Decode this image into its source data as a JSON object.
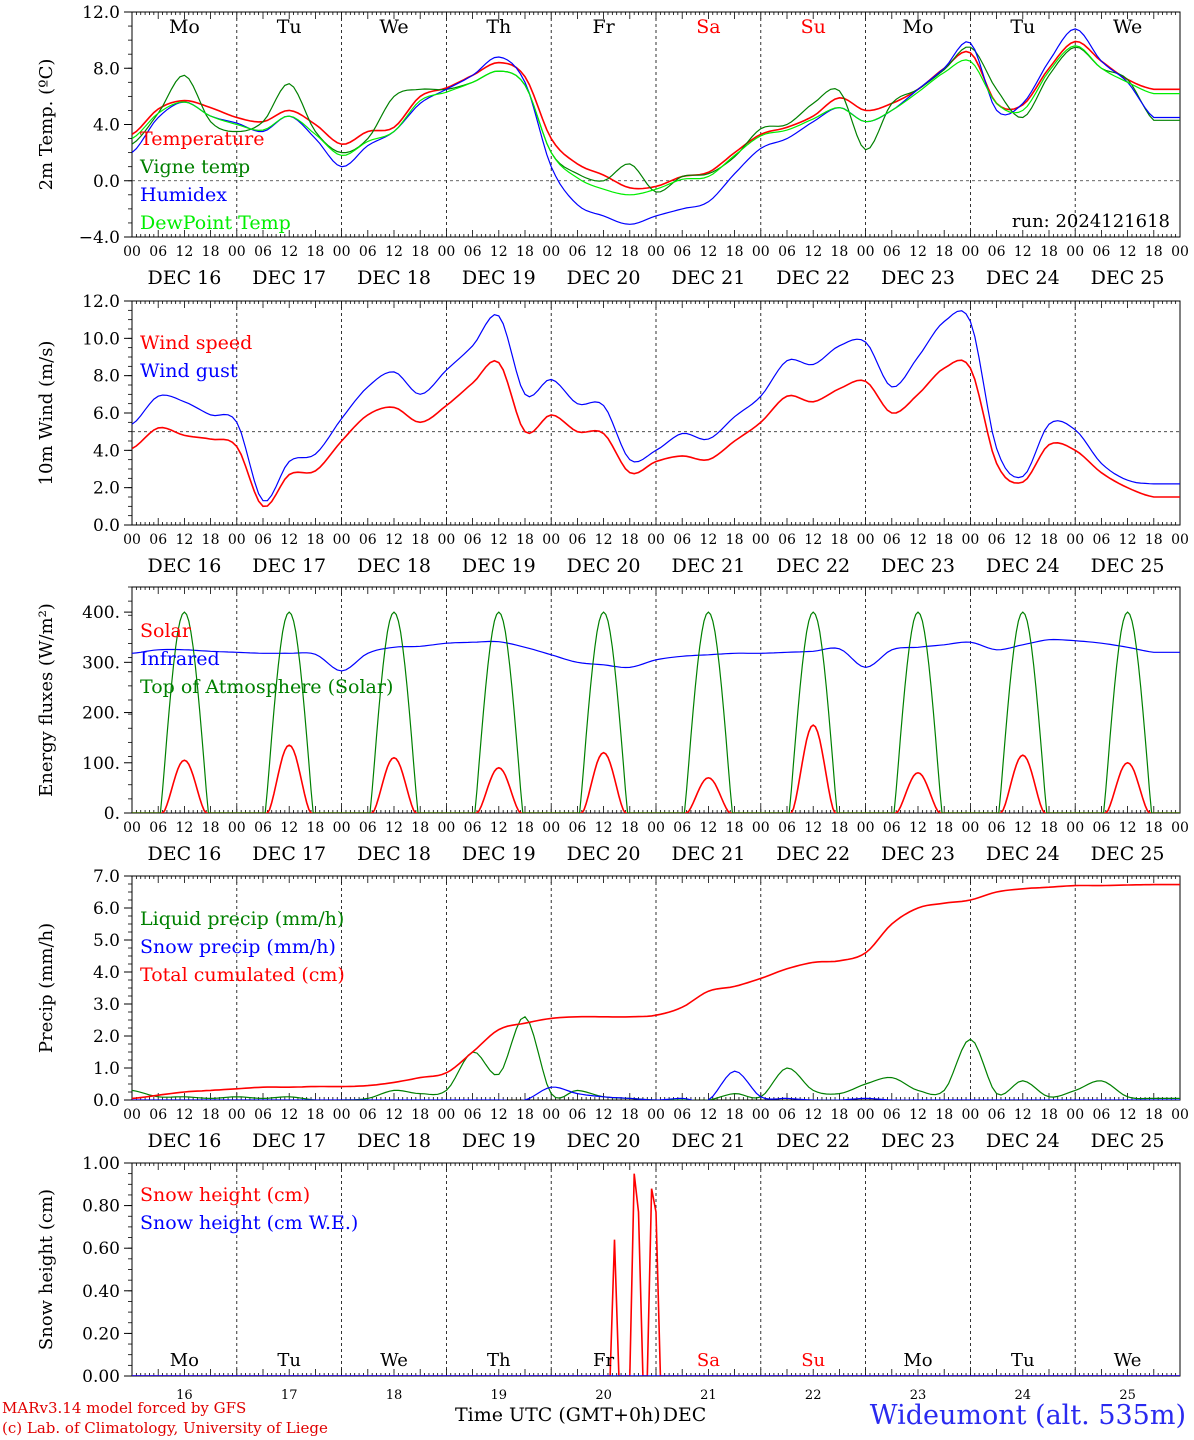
{
  "chart_data": [
    {
      "type": "line",
      "ylabel": "2m Temp. (ºC)",
      "ylim": [
        -4,
        12
      ],
      "yticks": [
        -4,
        0,
        4,
        8,
        12
      ],
      "ytick_labels": [
        "−4.0",
        "0.0",
        "4.0",
        "8.0",
        "12.0"
      ],
      "ref_line": 0,
      "weekday_labels": [
        "Mo",
        "Tu",
        "We",
        "Th",
        "Fr",
        "Sa",
        "Su",
        "Mo",
        "Tu",
        "We"
      ],
      "run_label": "run: 2024121618",
      "x_hours": [
        0,
        6,
        12,
        18,
        24,
        30,
        36,
        42,
        48,
        54,
        60,
        66,
        72,
        78,
        84,
        90,
        96,
        102,
        108,
        114,
        120,
        126,
        132,
        138,
        144,
        150,
        156,
        162,
        168,
        174,
        180,
        186,
        192,
        198,
        204,
        210,
        216,
        222,
        228,
        234
      ],
      "series": [
        {
          "name": "Temperature",
          "color": "#ff0000",
          "values": [
            3.3,
            5.1,
            5.7,
            5.2,
            4.5,
            4.2,
            5.0,
            4.0,
            2.6,
            3.5,
            3.8,
            6.0,
            6.6,
            7.5,
            8.4,
            7.4,
            3.0,
            1.2,
            0.4,
            -0.5,
            -0.4,
            0.3,
            0.6,
            2.0,
            3.3,
            3.8,
            4.6,
            5.9,
            5.0,
            5.5,
            6.5,
            8.0,
            9.1,
            5.5,
            5.4,
            8.0,
            9.9,
            8.5,
            7.2,
            6.5
          ]
        },
        {
          "name": "Vigne temp",
          "color": "#008000",
          "values": [
            2.6,
            4.8,
            7.5,
            4.2,
            3.5,
            4.2,
            6.9,
            3.5,
            2.0,
            3.0,
            6.0,
            6.5,
            6.5,
            7.0,
            7.8,
            6.8,
            2.0,
            0.5,
            0.0,
            1.2,
            -0.8,
            0.3,
            0.5,
            1.7,
            3.7,
            4.0,
            5.5,
            6.4,
            2.2,
            5.5,
            6.5,
            7.9,
            9.5,
            6.5,
            4.5,
            7.5,
            9.5,
            8.0,
            7.2,
            4.3
          ]
        },
        {
          "name": "Humidex",
          "color": "#0000ff",
          "values": [
            2.0,
            4.5,
            5.6,
            4.6,
            4.1,
            3.5,
            4.6,
            3.0,
            1.0,
            2.5,
            3.5,
            5.5,
            6.5,
            7.5,
            8.8,
            7.0,
            1.0,
            -1.7,
            -2.5,
            -3.1,
            -2.5,
            -2.0,
            -1.5,
            0.5,
            2.3,
            3.0,
            4.2,
            5.2,
            4.2,
            5.0,
            6.5,
            8.0,
            9.8,
            5.0,
            5.5,
            8.5,
            10.8,
            8.5,
            7.0,
            4.5
          ]
        },
        {
          "name": "DewPoint Temp",
          "color": "#00ee00",
          "values": [
            3.0,
            4.8,
            5.6,
            4.6,
            4.0,
            3.6,
            4.6,
            3.3,
            1.8,
            2.8,
            3.5,
            5.7,
            6.3,
            7.0,
            7.8,
            6.8,
            2.0,
            0.2,
            -0.6,
            -1.0,
            -0.6,
            0.1,
            0.3,
            1.8,
            3.2,
            3.6,
            4.4,
            5.2,
            4.2,
            5.0,
            6.3,
            7.7,
            8.5,
            5.5,
            5.0,
            7.8,
            9.6,
            8.0,
            7.0,
            6.2
          ]
        }
      ]
    },
    {
      "type": "line",
      "ylabel": "10m Wind (m/s)",
      "ylim": [
        0,
        12
      ],
      "yticks": [
        0,
        2,
        4,
        6,
        8,
        10,
        12
      ],
      "ytick_labels": [
        "0.0",
        "2.0",
        "4.0",
        "6.0",
        "8.0",
        "10.0",
        "12.0"
      ],
      "ref_line": 5,
      "x_hours": [
        0,
        6,
        12,
        18,
        24,
        30,
        36,
        42,
        48,
        54,
        60,
        66,
        72,
        78,
        84,
        90,
        96,
        102,
        108,
        114,
        120,
        126,
        132,
        138,
        144,
        150,
        156,
        162,
        168,
        174,
        180,
        186,
        192,
        198,
        204,
        210,
        216,
        222,
        228,
        234
      ],
      "series": [
        {
          "name": "Wind speed",
          "color": "#ff0000",
          "values": [
            4.1,
            5.2,
            4.8,
            4.6,
            4.2,
            1.0,
            2.7,
            2.9,
            4.5,
            5.9,
            6.3,
            5.5,
            6.4,
            7.6,
            8.7,
            5.0,
            5.9,
            5.0,
            4.9,
            2.8,
            3.4,
            3.7,
            3.5,
            4.5,
            5.5,
            6.9,
            6.6,
            7.3,
            7.7,
            6.0,
            7.0,
            8.4,
            8.4,
            3.3,
            2.3,
            4.3,
            4.0,
            2.8,
            2.0,
            1.5
          ]
        },
        {
          "name": "Wind gust",
          "color": "#0000ff",
          "values": [
            5.4,
            6.9,
            6.6,
            5.9,
            5.5,
            1.3,
            3.4,
            3.8,
            5.7,
            7.4,
            8.2,
            7.0,
            8.3,
            9.6,
            11.2,
            7.0,
            7.8,
            6.5,
            6.4,
            3.5,
            4.0,
            4.9,
            4.6,
            5.8,
            6.9,
            8.8,
            8.6,
            9.6,
            9.8,
            7.4,
            9.0,
            10.9,
            10.9,
            4.1,
            2.6,
            5.4,
            5.1,
            3.3,
            2.4,
            2.2
          ]
        }
      ]
    },
    {
      "type": "line",
      "ylabel": "Energy fluxes (W/m²)",
      "ylim": [
        0,
        450
      ],
      "yticks": [
        0,
        100,
        200,
        300,
        400
      ],
      "ytick_labels": [
        "0.",
        "100.",
        "200.",
        "300.",
        "400."
      ],
      "solar_peaks": [
        105,
        135,
        110,
        90,
        120,
        70,
        175,
        80,
        115,
        100
      ],
      "toa_peak": 400,
      "x_hours": [
        0,
        6,
        12,
        18,
        24,
        30,
        36,
        42,
        48,
        54,
        60,
        66,
        72,
        78,
        84,
        90,
        96,
        102,
        108,
        114,
        120,
        126,
        132,
        138,
        144,
        150,
        156,
        162,
        168,
        174,
        180,
        186,
        192,
        198,
        204,
        210,
        216,
        222,
        228,
        234
      ],
      "series": [
        {
          "name": "Solar",
          "color": "#ff0000",
          "values": []
        },
        {
          "name": "Infrared",
          "color": "#0000ff",
          "values": [
            318,
            325,
            325,
            322,
            320,
            318,
            318,
            316,
            283,
            318,
            330,
            332,
            338,
            340,
            341,
            330,
            315,
            300,
            295,
            290,
            305,
            312,
            315,
            318,
            318,
            320,
            322,
            327,
            290,
            325,
            330,
            335,
            340,
            325,
            335,
            345,
            343,
            338,
            330,
            320
          ]
        },
        {
          "name": "Top of Atmosphere (Solar)",
          "color": "#008000",
          "values": []
        }
      ]
    },
    {
      "type": "line",
      "ylabel": "Precip (mm/h)",
      "ylim": [
        0,
        7
      ],
      "yticks": [
        0,
        1,
        2,
        3,
        4,
        5,
        6,
        7
      ],
      "ytick_labels": [
        "0.0",
        "1.0",
        "2.0",
        "3.0",
        "4.0",
        "5.0",
        "6.0",
        "7.0"
      ],
      "x_hours": [
        0,
        6,
        12,
        18,
        24,
        30,
        36,
        42,
        48,
        54,
        60,
        66,
        72,
        78,
        84,
        90,
        96,
        102,
        108,
        114,
        120,
        126,
        132,
        138,
        144,
        150,
        156,
        162,
        168,
        174,
        180,
        186,
        192,
        198,
        204,
        210,
        216,
        222,
        228,
        234
      ],
      "series": [
        {
          "name": "Liquid precip (mm/h)",
          "color": "#008000",
          "values": [
            0.3,
            0.1,
            0.1,
            0.05,
            0.1,
            0.05,
            0.1,
            0.0,
            0.0,
            0.05,
            0.3,
            0.2,
            0.3,
            1.5,
            0.8,
            2.6,
            0.2,
            0.3,
            0.1,
            0.05,
            0.0,
            0.0,
            0.0,
            0.2,
            0.1,
            1.0,
            0.3,
            0.2,
            0.5,
            0.7,
            0.3,
            0.3,
            1.9,
            0.2,
            0.6,
            0.1,
            0.3,
            0.6,
            0.1,
            0.05
          ]
        },
        {
          "name": "Snow precip (mm/h)",
          "color": "#0000ff",
          "values": [
            0,
            0,
            0,
            0,
            0,
            0,
            0,
            0,
            0,
            0,
            0,
            0,
            0,
            0,
            0,
            0,
            0.4,
            0.2,
            0.1,
            0.05,
            0,
            0.05,
            0,
            0.9,
            0.1,
            0.05,
            0,
            0,
            0.05,
            0,
            0,
            0,
            0,
            0,
            0,
            0,
            0,
            0,
            0,
            0
          ]
        },
        {
          "name": "Total cumulated (cm)",
          "color": "#ff0000",
          "values": [
            0.05,
            0.15,
            0.25,
            0.3,
            0.35,
            0.4,
            0.4,
            0.42,
            0.42,
            0.45,
            0.55,
            0.7,
            0.85,
            1.5,
            2.2,
            2.4,
            2.55,
            2.6,
            2.6,
            2.6,
            2.65,
            2.9,
            3.4,
            3.55,
            3.8,
            4.1,
            4.3,
            4.35,
            4.6,
            5.5,
            6.0,
            6.15,
            6.25,
            6.5,
            6.6,
            6.65,
            6.7,
            6.7,
            6.72,
            6.73
          ]
        }
      ]
    },
    {
      "type": "line",
      "ylabel": "Snow height (cm)",
      "ylim": [
        0,
        1
      ],
      "yticks": [
        0,
        0.2,
        0.4,
        0.6,
        0.8,
        1.0
      ],
      "ytick_labels": [
        "0.00",
        "0.20",
        "0.40",
        "0.60",
        "0.80",
        "1.00"
      ],
      "weekday_labels": [
        "Mo",
        "Tu",
        "We",
        "Th",
        "Fr",
        "Sa",
        "Su",
        "Mo",
        "Tu",
        "We"
      ],
      "day_numbers": [
        "16",
        "17",
        "18",
        "19",
        "20",
        "21",
        "22",
        "23",
        "24",
        "25"
      ],
      "series": [
        {
          "name": "Snow height (cm)",
          "color": "#ff0000",
          "points": [
            [
              0,
              0
            ],
            [
              109.5,
              0
            ],
            [
              110.5,
              0.64
            ],
            [
              111.5,
              0
            ],
            [
              114,
              0
            ],
            [
              115,
              0.95
            ],
            [
              116,
              0.77
            ],
            [
              117,
              0
            ],
            [
              118,
              0
            ],
            [
              119,
              0.88
            ],
            [
              120,
              0.77
            ],
            [
              121,
              0
            ],
            [
              240,
              0
            ]
          ]
        },
        {
          "name": "Snow height (cm W.E.)",
          "color": "#0000ff",
          "points": [
            [
              0,
              0
            ],
            [
              240,
              0
            ]
          ]
        }
      ]
    }
  ],
  "x_axis": {
    "hour_labels": [
      "00",
      "06",
      "12",
      "18"
    ],
    "last_hour_label": "00",
    "date_labels": [
      "DEC 16",
      "DEC 17",
      "DEC 18",
      "DEC 19",
      "DEC 20",
      "DEC 21",
      "DEC 22",
      "DEC 23",
      "DEC 24",
      "DEC 25"
    ],
    "weekend_color": "#ff0000",
    "weekend_indices": [
      5,
      6
    ]
  },
  "footer": {
    "credit_line1": "MARv3.14 model forced by GFS",
    "credit_line2": "(c) Lab. of Climatology, University of Liege",
    "xaxis_title": "Time UTC (GMT+0h)",
    "xaxis_month": "DEC",
    "station": "Wideumont (alt. 535m)"
  }
}
